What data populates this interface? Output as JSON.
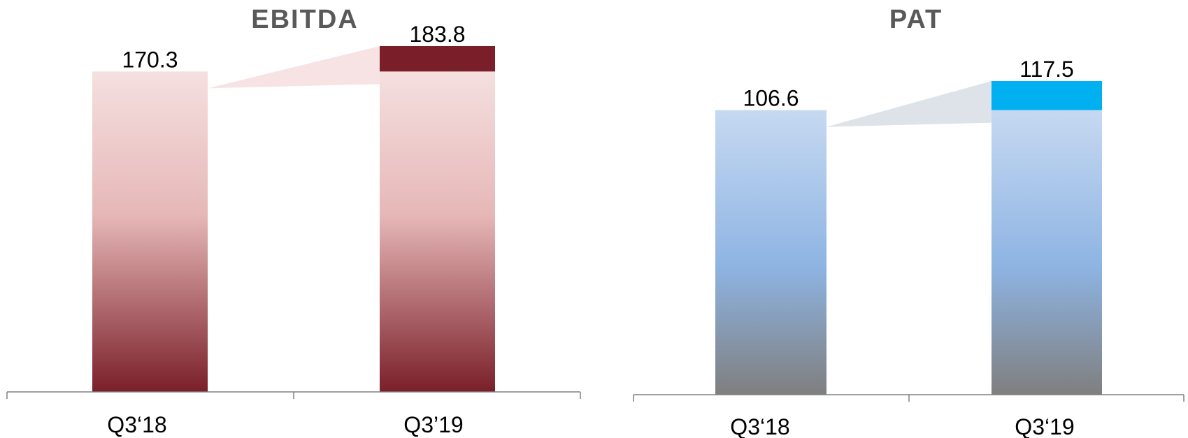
{
  "chart_data": [
    {
      "type": "bar",
      "title": "EBITDA",
      "categories": [
        "Q3‘18",
        "Q3’19"
      ],
      "values": [
        170.3,
        183.8
      ],
      "value_labels": [
        "170.3",
        "183.8"
      ],
      "ylim": [
        0,
        200
      ],
      "grid": false,
      "colors": {
        "gradient_top": "#f5e0e0",
        "gradient_mid": "#e6b7b7",
        "gradient_bottom": "#7a1f29",
        "increment": "#7a1f29",
        "connector": "#f7e3e4"
      }
    },
    {
      "type": "bar",
      "title": "PAT",
      "categories": [
        "Q3‘18",
        "Q3‘19"
      ],
      "values": [
        106.6,
        117.5
      ],
      "value_labels": [
        "106.6",
        "117.5"
      ],
      "ylim": [
        0,
        130
      ],
      "grid": false,
      "colors": {
        "gradient_top": "#c6d9f1",
        "gradient_mid": "#8eb4e3",
        "gradient_bottom": "#7f7f7f",
        "increment": "#00b0f0",
        "connector": "#dde3e8"
      }
    }
  ]
}
